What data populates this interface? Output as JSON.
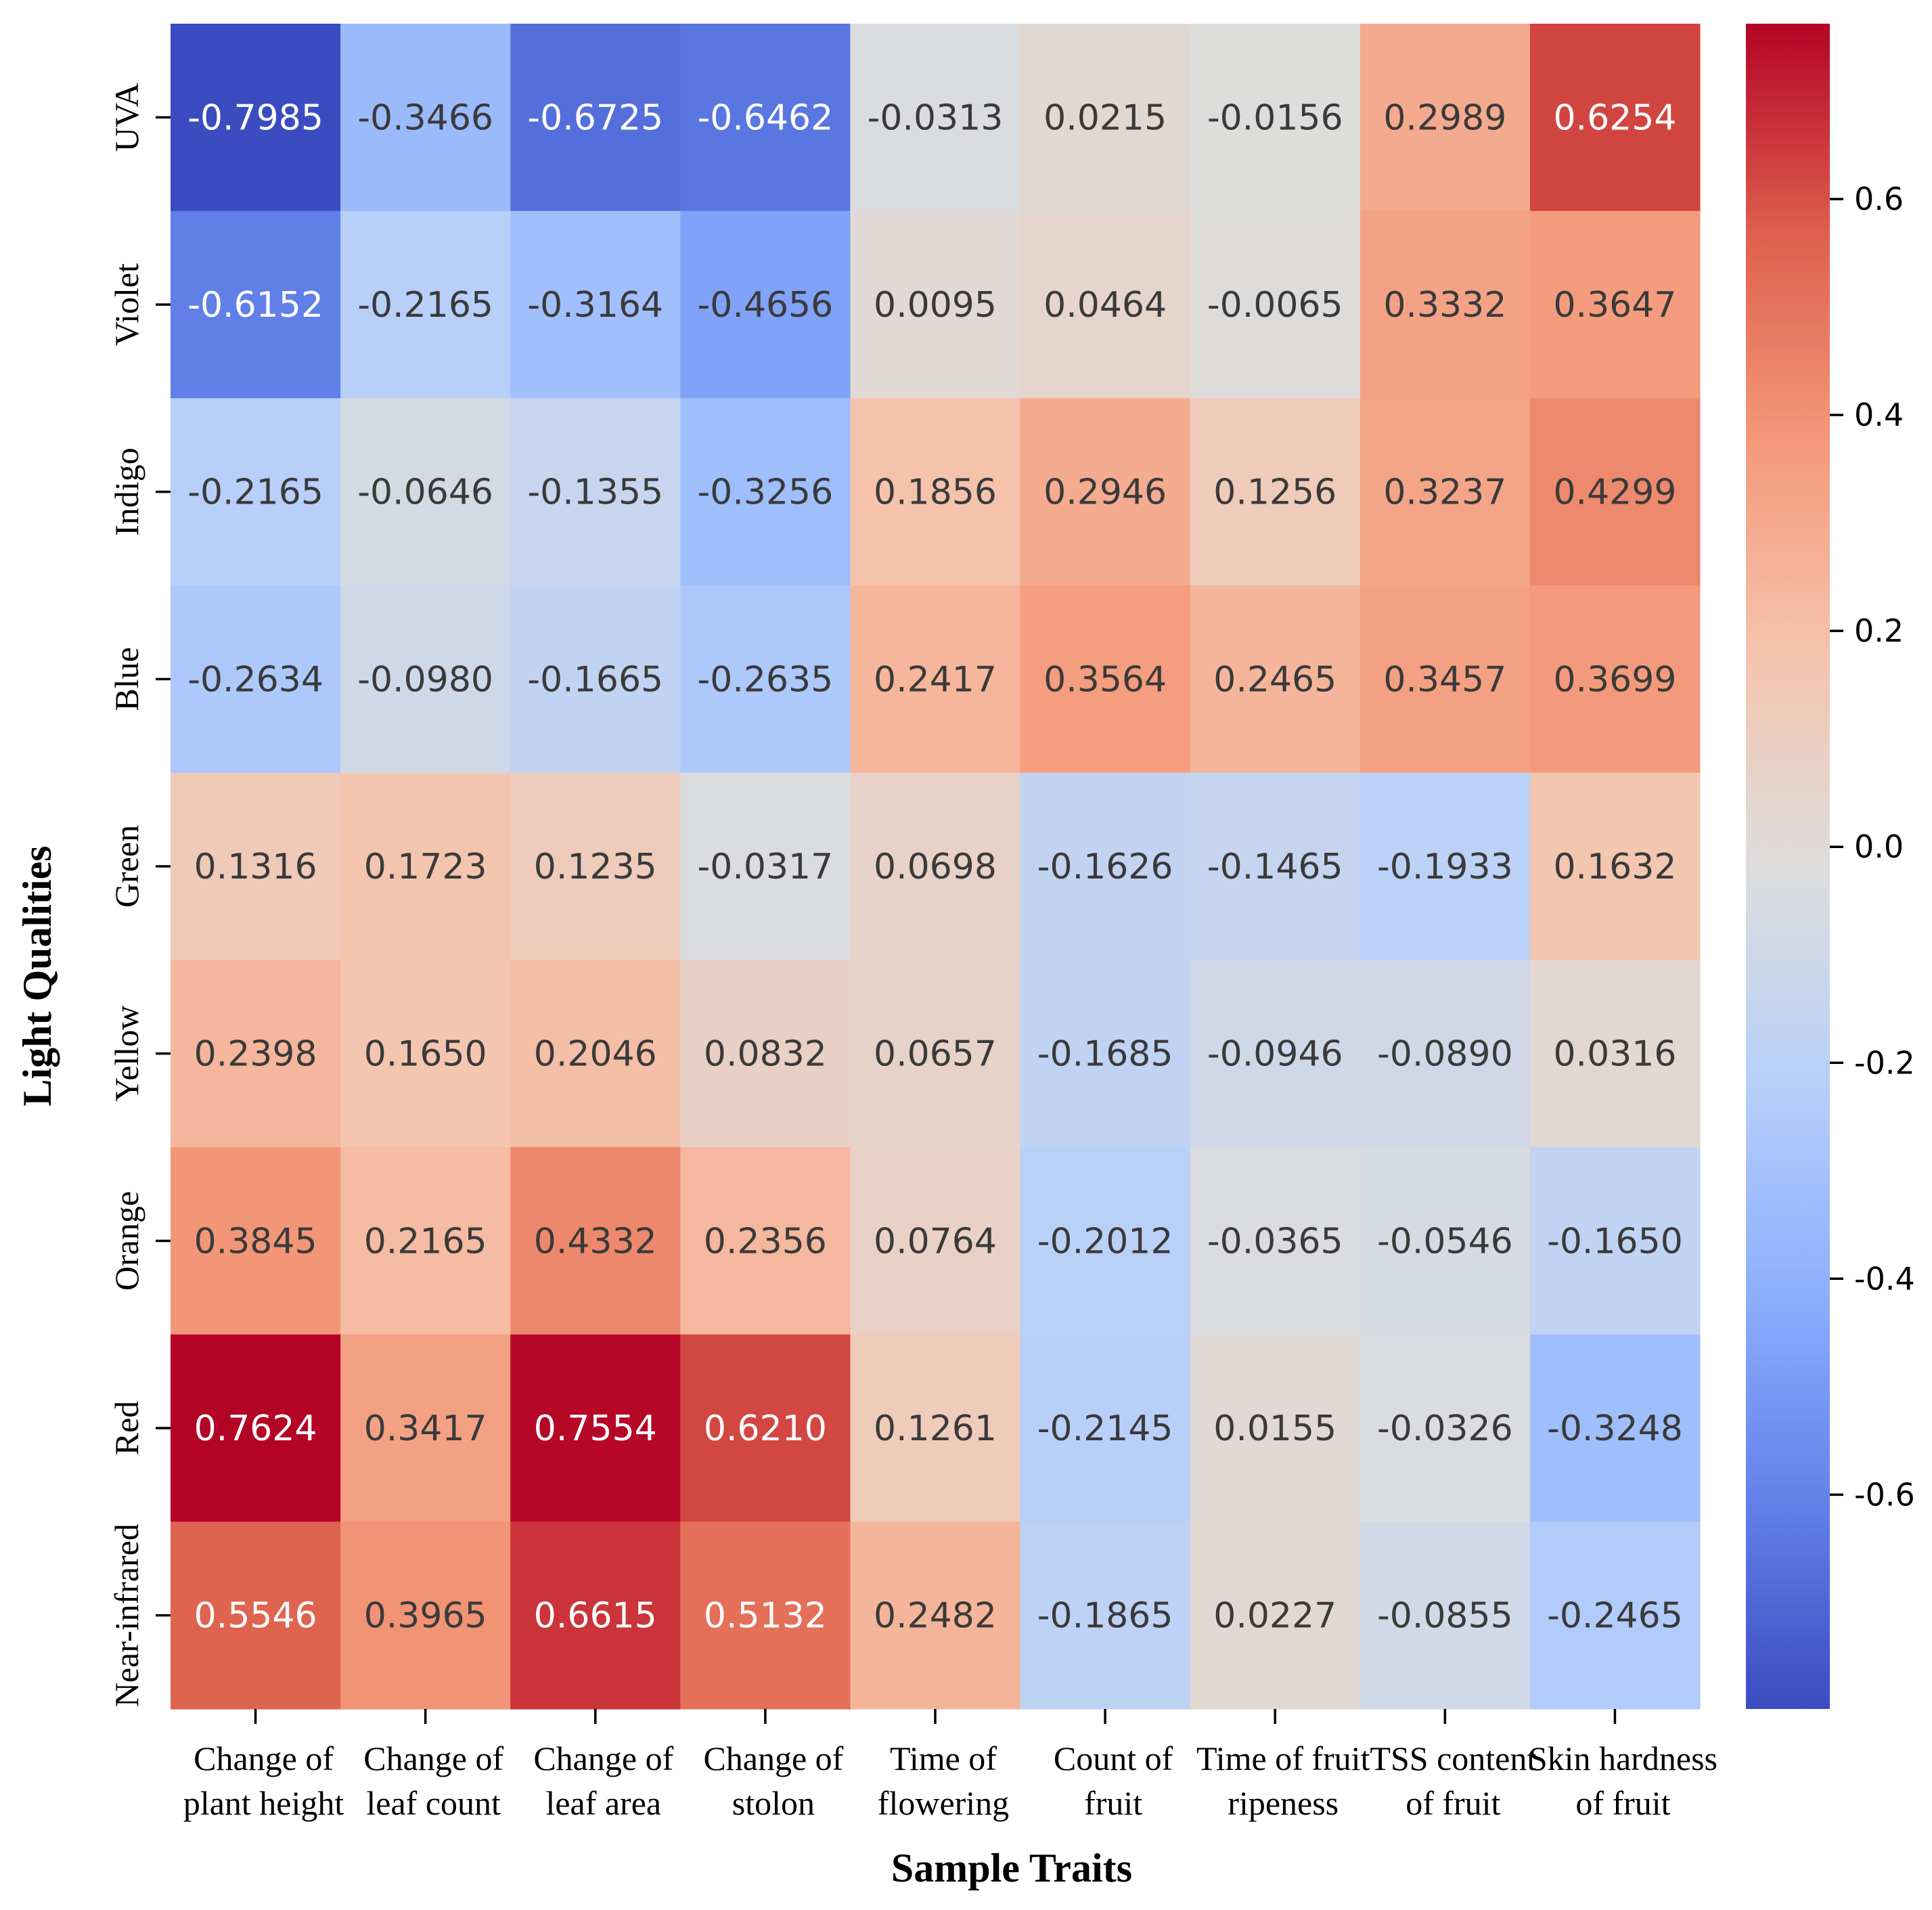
{
  "chart_data": {
    "type": "heatmap",
    "title": "",
    "xlabel": "Sample Traits",
    "ylabel": "Light Qualities",
    "x_categories": [
      [
        "Change of",
        "plant height"
      ],
      [
        "Change of",
        "leaf count"
      ],
      [
        "Change of",
        "leaf area"
      ],
      [
        "Change of",
        "stolon"
      ],
      [
        "Time of",
        "flowering"
      ],
      [
        "Count of",
        "fruit"
      ],
      [
        "Time of fruit",
        "ripeness"
      ],
      [
        "TSS content",
        "of fruit"
      ],
      [
        "Skin hardness",
        "of fruit"
      ]
    ],
    "y_categories": [
      "UVA",
      "Violet",
      "Indigo",
      "Blue",
      "Green",
      "Yellow",
      "Orange",
      "Red",
      "Near-infrared"
    ],
    "values": [
      [
        "-0.7985",
        "-0.3466",
        "-0.6725",
        "-0.6462",
        "-0.0313",
        "0.0215",
        "-0.0156",
        "0.2989",
        "0.6254"
      ],
      [
        "-0.6152",
        "-0.2165",
        "-0.3164",
        "-0.4656",
        "0.0095",
        "0.0464",
        "-0.0065",
        "0.3332",
        "0.3647"
      ],
      [
        "-0.2165",
        "-0.0646",
        "-0.1355",
        "-0.3256",
        "0.1856",
        "0.2946",
        "0.1256",
        "0.3237",
        "0.4299"
      ],
      [
        "-0.2634",
        "-0.0980",
        "-0.1665",
        "-0.2635",
        "0.2417",
        "0.3564",
        "0.2465",
        "0.3457",
        "0.3699"
      ],
      [
        "0.1316",
        "0.1723",
        "0.1235",
        "-0.0317",
        "0.0698",
        "-0.1626",
        "-0.1465",
        "-0.1933",
        "0.1632"
      ],
      [
        "0.2398",
        "0.1650",
        "0.2046",
        "0.0832",
        "0.0657",
        "-0.1685",
        "-0.0946",
        "-0.0890",
        "0.0316"
      ],
      [
        "0.3845",
        "0.2165",
        "0.4332",
        "0.2356",
        "0.0764",
        "-0.2012",
        "-0.0365",
        "-0.0546",
        "-0.1650"
      ],
      [
        "0.7624",
        "0.3417",
        "0.7554",
        "0.6210",
        "0.1261",
        "-0.2145",
        "0.0155",
        "-0.0326",
        "-0.3248"
      ],
      [
        "0.5546",
        "0.3965",
        "0.6615",
        "0.5132",
        "0.2482",
        "-0.1865",
        "0.0227",
        "-0.0855",
        "-0.2465"
      ]
    ],
    "colorbar": {
      "cmap": "coolwarm",
      "vmin": -0.7985,
      "vmax": 0.7624,
      "ticks": [
        -0.6,
        -0.4,
        -0.2,
        0.0,
        0.2,
        0.4,
        0.6
      ],
      "tick_labels": [
        "-0.6",
        "-0.4",
        "-0.2",
        "0.0",
        "0.2",
        "0.4",
        "0.6"
      ]
    }
  }
}
